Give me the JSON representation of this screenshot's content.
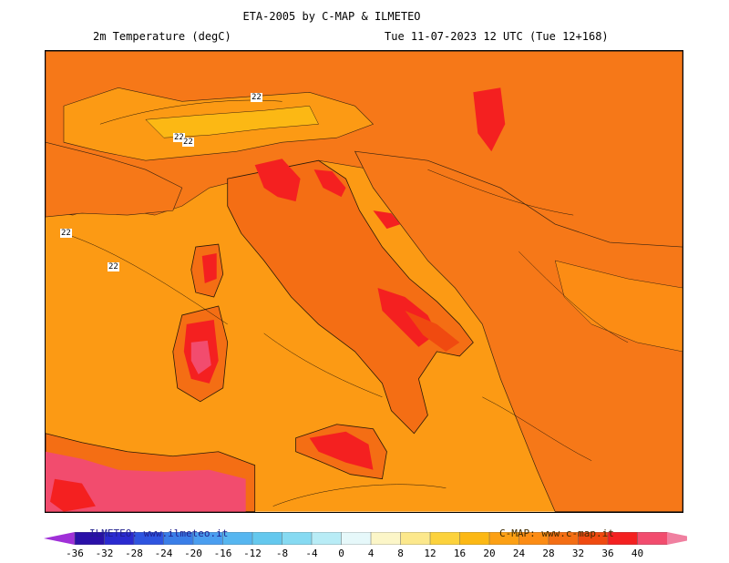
{
  "header": {
    "title": "ETA-2005 by C-MAP & ILMETEO",
    "parameter": "2m Temperature (degC)",
    "valid_time": "Tue 11-07-2023 12 UTC (Tue 12+168)"
  },
  "map": {
    "contour_labels": [
      "22",
      "22",
      "22",
      "22",
      "22"
    ]
  },
  "colorbar": {
    "ticks": [
      "-36",
      "-32",
      "-28",
      "-24",
      "-20",
      "-16",
      "-12",
      "-8",
      "-4",
      "0",
      "4",
      "8",
      "12",
      "16",
      "20",
      "24",
      "28",
      "32",
      "36",
      "40"
    ],
    "colors": [
      "#2a10a8",
      "#2a2ad0",
      "#2e54e0",
      "#3a7ee8",
      "#4a9ef0",
      "#56b6f0",
      "#64c8ee",
      "#86daf2",
      "#b8ecf6",
      "#e6f8fa",
      "#fcf6c8",
      "#fce88c",
      "#fcd23c",
      "#fcb814",
      "#fca014",
      "#fc8c14",
      "#f46e14",
      "#f04a10",
      "#f42020",
      "#f24c6e"
    ],
    "low_arrow_color": "#a030d8",
    "high_arrow_color": "#f080a0"
  },
  "credits": {
    "left": "ILMETEO: www.ilmeteo.it",
    "right": "C-MAP: www.c-map.it"
  }
}
